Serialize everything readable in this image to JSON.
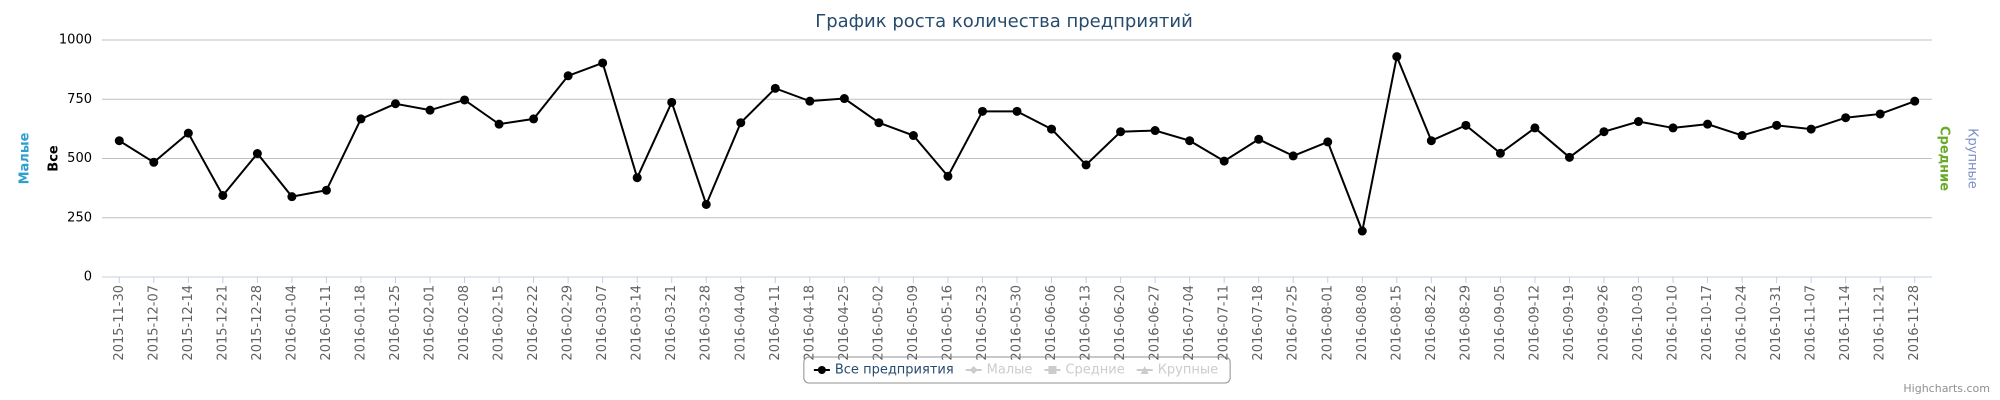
{
  "chart_data": {
    "type": "line",
    "title": "График роста количества предприятий",
    "x": [
      "2015-11-30",
      "2015-12-07",
      "2015-12-14",
      "2015-12-21",
      "2015-12-28",
      "2016-01-04",
      "2016-01-11",
      "2016-01-18",
      "2016-01-25",
      "2016-02-01",
      "2016-02-08",
      "2016-02-15",
      "2016-02-22",
      "2016-02-29",
      "2016-03-07",
      "2016-03-14",
      "2016-03-21",
      "2016-03-28",
      "2016-04-04",
      "2016-04-11",
      "2016-04-18",
      "2016-04-25",
      "2016-05-02",
      "2016-05-09",
      "2016-05-16",
      "2016-05-23",
      "2016-05-30",
      "2016-06-06",
      "2016-06-13",
      "2016-06-20",
      "2016-06-27",
      "2016-07-04",
      "2016-07-11",
      "2016-07-18",
      "2016-07-25",
      "2016-08-01",
      "2016-08-08",
      "2016-08-15",
      "2016-08-22",
      "2016-08-29",
      "2016-09-05",
      "2016-09-12",
      "2016-09-19",
      "2016-09-26",
      "2016-10-03",
      "2016-10-10",
      "2016-10-17",
      "2016-10-24",
      "2016-10-31",
      "2016-11-07",
      "2016-11-14",
      "2016-11-21",
      "2016-11-28"
    ],
    "series": [
      {
        "name": "Все предприятия",
        "color": "#000000",
        "visible": true,
        "values": [
          575,
          484,
          607,
          344,
          521,
          339,
          366,
          667,
          731,
          704,
          747,
          645,
          667,
          849,
          903,
          419,
          737,
          306,
          651,
          796,
          742,
          753,
          651,
          597,
          425,
          699,
          699,
          624,
          473,
          613,
          618,
          575,
          489,
          581,
          511,
          570,
          194,
          930,
          575,
          640,
          522,
          629,
          505,
          613,
          656,
          629,
          645,
          597,
          640,
          624,
          672,
          688,
          742
        ]
      },
      {
        "name": "Малые",
        "color": "#2f9fd0",
        "visible": false
      },
      {
        "name": "Средние",
        "color": "#6aaa2a",
        "visible": false
      },
      {
        "name": "Крупные",
        "color": "#8090c8",
        "visible": false
      }
    ],
    "y_axis_titles_left": [
      {
        "text": "Малые",
        "color": "#2f9fd0",
        "bold": true
      },
      {
        "text": "Все",
        "color": "#000000",
        "bold": true
      }
    ],
    "y_axis_titles_right": [
      {
        "text": "Средние",
        "color": "#6aaa2a",
        "bold": true
      },
      {
        "text": "Крупные",
        "color": "#8090c8",
        "bold": false
      }
    ],
    "ylim": [
      0,
      1000
    ],
    "yticks": [
      0,
      250,
      500,
      750,
      1000
    ],
    "grid": true,
    "legend": "bottom",
    "credits": "Highcharts.com"
  }
}
